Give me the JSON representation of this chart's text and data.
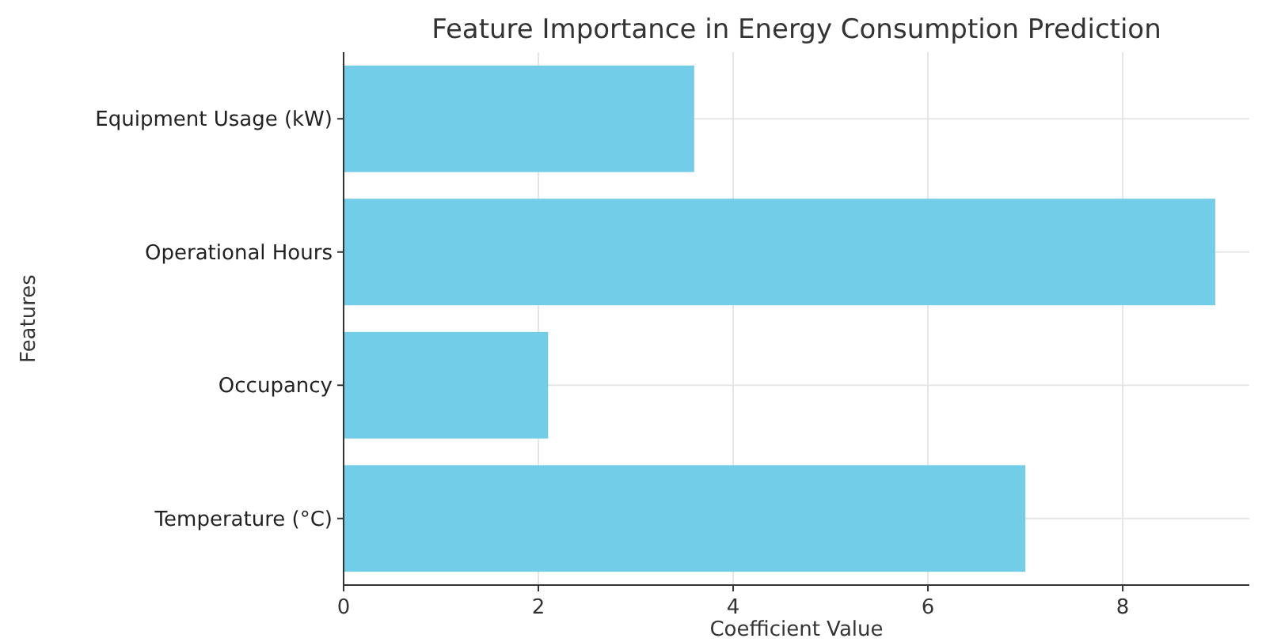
{
  "chart_data": {
    "type": "bar",
    "orientation": "horizontal",
    "title": "Feature Importance in Energy Consumption Prediction",
    "xlabel": "Coefficient Value",
    "ylabel": "Features",
    "categories": [
      "Equipment Usage (kW)",
      "Operational Hours",
      "Occupancy",
      "Temperature (°C)"
    ],
    "values": [
      3.6,
      8.95,
      2.1,
      7.0
    ],
    "color": "#72cde8",
    "xlim": [
      0,
      9.3
    ],
    "xticks": [
      0,
      2,
      4,
      6,
      8
    ],
    "grid": true
  }
}
